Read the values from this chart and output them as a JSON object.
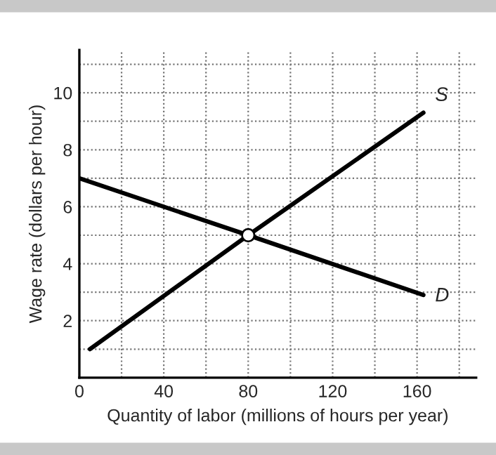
{
  "chart_data": {
    "type": "line",
    "xlabel": "Quantity of labor (millions of hours per year)",
    "ylabel": "Wage rate (dollars per hour)",
    "series": [
      {
        "name": "S",
        "color": "#000000",
        "x": [
          5,
          80,
          163
        ],
        "values": [
          1.0,
          5,
          9.3
        ]
      },
      {
        "name": "D",
        "color": "#000000",
        "x": [
          0,
          80,
          163
        ],
        "values": [
          7,
          5,
          2.9
        ]
      },
      {
        "type": "scatter",
        "color": "#000000",
        "x": [
          80
        ],
        "values": [
          5
        ],
        "marker": "circle"
      }
    ],
    "xlim": [
      0,
      188
    ],
    "ylim": [
      0,
      11.5
    ],
    "xticks": [
      0,
      40,
      80,
      120,
      160
    ],
    "yticks": [
      2,
      4,
      6,
      8,
      10
    ],
    "grid": true,
    "legend": false,
    "marker": "none",
    "line_style": "solid"
  }
}
